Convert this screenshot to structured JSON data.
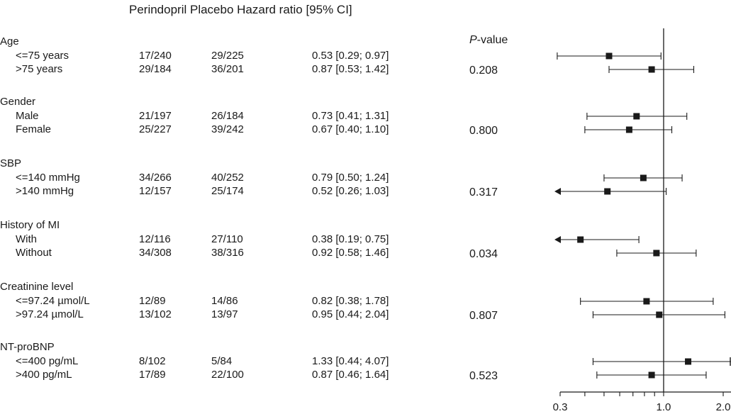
{
  "header": {
    "columns": "Perindopril Placebo Hazard ratio [95% CI]",
    "pvalue_italic": "P",
    "pvalue_rest": "-value"
  },
  "groups": [
    {
      "label": "Age",
      "pvalue": "0.208",
      "rows": [
        {
          "label": "<=75 years",
          "perindopril": "17/240",
          "placebo": "29/225",
          "hr_text": "0.53 [0.29; 0.97]"
        },
        {
          "label": ">75 years",
          "perindopril": "29/184",
          "placebo": "36/201",
          "hr_text": "0.87 [0.53; 1.42]"
        }
      ]
    },
    {
      "label": "Gender",
      "pvalue": "0.800",
      "rows": [
        {
          "label": "Male",
          "perindopril": "21/197",
          "placebo": "26/184",
          "hr_text": "0.73 [0.41; 1.31]"
        },
        {
          "label": "Female",
          "perindopril": "25/227",
          "placebo": "39/242",
          "hr_text": "0.67 [0.40; 1.10]"
        }
      ]
    },
    {
      "label": "SBP",
      "pvalue": "0.317",
      "rows": [
        {
          "label": "<=140 mmHg",
          "perindopril": "34/266",
          "placebo": "40/252",
          "hr_text": "0.79 [0.50; 1.24]"
        },
        {
          "label": ">140 mmHg",
          "perindopril": "12/157",
          "placebo": "25/174",
          "hr_text": "0.52 [0.26; 1.03]"
        }
      ]
    },
    {
      "label": "History of MI",
      "pvalue": "0.034",
      "rows": [
        {
          "label": "With",
          "perindopril": "12/116",
          "placebo": "27/110",
          "hr_text": "0.38 [0.19; 0.75]"
        },
        {
          "label": "Without",
          "perindopril": "34/308",
          "placebo": "38/316",
          "hr_text": "0.92 [0.58; 1.46]"
        }
      ]
    },
    {
      "label": "Creatinine level",
      "pvalue": "0.807",
      "rows": [
        {
          "label": "<=97.24 µmol/L",
          "perindopril": "12/89",
          "placebo": "14/86",
          "hr_text": "0.82 [0.38; 1.78]"
        },
        {
          "label": ">97.24 µmol/L",
          "perindopril": "13/102",
          "placebo": "13/97",
          "hr_text": "0.95 [0.44; 2.04]"
        }
      ]
    },
    {
      "label": "NT-proBNP",
      "pvalue": "0.523",
      "rows": [
        {
          "label": "<=400 pg/mL",
          "perindopril": "8/102",
          "placebo": "5/84",
          "hr_text": "1.33 [0.44; 4.07]"
        },
        {
          "label": ">400 pg/mL",
          "perindopril": "17/89",
          "placebo": "22/100",
          "hr_text": "0.87 [0.46; 1.64]"
        }
      ]
    }
  ],
  "chart_data": {
    "type": "forest",
    "x_scale": "log",
    "xlim": [
      0.3,
      2.0
    ],
    "reference_line": 1.0,
    "x_ticks": [
      0.3,
      1.0,
      2.0
    ],
    "x_tick_labels": [
      "0.3",
      "1.0",
      "2.0"
    ],
    "rows": [
      {
        "group": "Age",
        "subgroup": "<=75 years",
        "hr": 0.53,
        "lower": 0.29,
        "upper": 0.97
      },
      {
        "group": "Age",
        "subgroup": ">75 years",
        "hr": 0.87,
        "lower": 0.53,
        "upper": 1.42
      },
      {
        "group": "Gender",
        "subgroup": "Male",
        "hr": 0.73,
        "lower": 0.41,
        "upper": 1.31
      },
      {
        "group": "Gender",
        "subgroup": "Female",
        "hr": 0.67,
        "lower": 0.4,
        "upper": 1.1
      },
      {
        "group": "SBP",
        "subgroup": "<=140 mmHg",
        "hr": 0.79,
        "lower": 0.5,
        "upper": 1.24
      },
      {
        "group": "SBP",
        "subgroup": ">140 mmHg",
        "hr": 0.52,
        "lower": 0.26,
        "upper": 1.03
      },
      {
        "group": "History of MI",
        "subgroup": "With",
        "hr": 0.38,
        "lower": 0.19,
        "upper": 0.75
      },
      {
        "group": "History of MI",
        "subgroup": "Without",
        "hr": 0.92,
        "lower": 0.58,
        "upper": 1.46
      },
      {
        "group": "Creatinine level",
        "subgroup": "<=97.24 µmol/L",
        "hr": 0.82,
        "lower": 0.38,
        "upper": 1.78
      },
      {
        "group": "Creatinine level",
        "subgroup": ">97.24 µmol/L",
        "hr": 0.95,
        "lower": 0.44,
        "upper": 2.04
      },
      {
        "group": "NT-proBNP",
        "subgroup": "<=400 pg/mL",
        "hr": 1.33,
        "lower": 0.44,
        "upper": 4.07
      },
      {
        "group": "NT-proBNP",
        "subgroup": ">400 pg/mL",
        "hr": 0.87,
        "lower": 0.46,
        "upper": 1.64
      }
    ]
  }
}
